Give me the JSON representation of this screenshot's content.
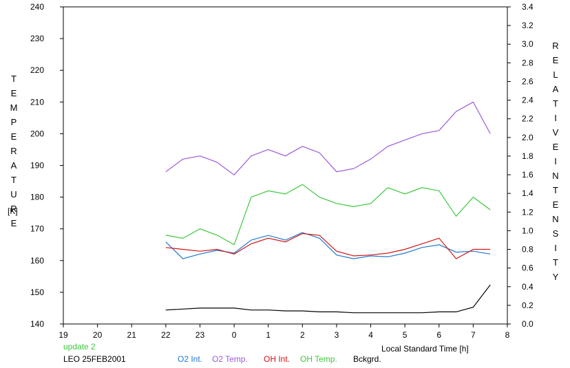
{
  "chart_data": {
    "type": "line",
    "xlabel": "Local Standard Time [h]",
    "x_ticks": [
      "19",
      "20",
      "21",
      "22",
      "23",
      "0",
      "1",
      "2",
      "3",
      "4",
      "5",
      "6",
      "7",
      "8"
    ],
    "xlim": [
      19,
      32
    ],
    "y_left": {
      "label_letters": [
        "T",
        "E",
        "M",
        "P",
        "E",
        "R",
        "A",
        "T",
        "U",
        "R",
        "E"
      ],
      "unit": "[K]",
      "ylim": [
        140,
        240
      ],
      "ticks": [
        "140",
        "150",
        "160",
        "170",
        "180",
        "190",
        "200",
        "210",
        "220",
        "230",
        "240"
      ]
    },
    "y_right": {
      "label_word1": [
        "R",
        "E",
        "L",
        "A",
        "T",
        "I",
        "V",
        "E"
      ],
      "label_word2": [
        "I",
        "N",
        "T",
        "E",
        "N",
        "S",
        "I",
        "T",
        "Y"
      ],
      "ylim": [
        0.0,
        3.4
      ],
      "ticks": [
        "0.0",
        "0.2",
        "0.4",
        "0.6",
        "0.8",
        "1.0",
        "1.2",
        "1.4",
        "1.6",
        "1.8",
        "2.0",
        "2.2",
        "2.4",
        "2.6",
        "2.8",
        "3.0",
        "3.2",
        "3.4"
      ]
    },
    "annotation": "update 2",
    "station": "LEO 25FEB2001",
    "series": [
      {
        "name": "O2 Int.",
        "axis": "right",
        "color": "#1e78d2",
        "x": [
          22.0,
          22.5,
          23.0,
          23.5,
          24.0,
          24.5,
          25.0,
          25.5,
          26.0,
          26.5,
          27.0,
          27.5,
          28.0,
          28.5,
          29.0,
          29.5,
          30.0,
          30.5,
          31.0,
          31.5
        ],
        "y": [
          0.88,
          0.7,
          0.75,
          0.79,
          0.76,
          0.9,
          0.95,
          0.9,
          0.98,
          0.92,
          0.74,
          0.7,
          0.73,
          0.72,
          0.76,
          0.82,
          0.85,
          0.77,
          0.78,
          0.75
        ]
      },
      {
        "name": "O2 Temp.",
        "axis": "left",
        "color": "#9b59d6",
        "x": [
          22.0,
          22.5,
          23.0,
          23.5,
          24.0,
          24.5,
          25.0,
          25.5,
          26.0,
          26.5,
          27.0,
          27.5,
          28.0,
          28.5,
          29.0,
          29.5,
          30.0,
          30.5,
          31.0,
          31.5
        ],
        "y": [
          188,
          192,
          193,
          191,
          187,
          193,
          195,
          193,
          196,
          194,
          188,
          189,
          192,
          196,
          198,
          200,
          201,
          207,
          210,
          200
        ]
      },
      {
        "name": "OH Int.",
        "axis": "right",
        "color": "#d21414",
        "x": [
          22.0,
          22.5,
          23.0,
          23.5,
          24.0,
          24.5,
          25.0,
          25.5,
          26.0,
          26.5,
          27.0,
          27.5,
          28.0,
          28.5,
          29.0,
          29.5,
          30.0,
          30.5,
          31.0,
          31.5
        ],
        "y": [
          0.82,
          0.8,
          0.78,
          0.8,
          0.75,
          0.86,
          0.92,
          0.88,
          0.97,
          0.95,
          0.78,
          0.73,
          0.74,
          0.76,
          0.8,
          0.86,
          0.92,
          0.7,
          0.8,
          0.8
        ]
      },
      {
        "name": "OH Temp.",
        "axis": "left",
        "color": "#3cc83c",
        "x": [
          22.0,
          22.5,
          23.0,
          23.5,
          24.0,
          24.5,
          25.0,
          25.5,
          26.0,
          26.5,
          27.0,
          27.5,
          28.0,
          28.5,
          29.0,
          29.5,
          30.0,
          30.5,
          31.0,
          31.5
        ],
        "y": [
          168,
          167,
          170,
          168,
          165,
          180,
          182,
          181,
          184,
          180,
          178,
          177,
          178,
          183,
          181,
          183,
          182,
          174,
          180,
          176
        ]
      },
      {
        "name": "Bckgrd.",
        "axis": "right",
        "color": "#000000",
        "x": [
          22.0,
          22.5,
          23.0,
          23.5,
          24.0,
          24.5,
          25.0,
          25.5,
          26.0,
          26.5,
          27.0,
          27.5,
          28.0,
          28.5,
          29.0,
          29.5,
          30.0,
          30.5,
          31.0,
          31.5
        ],
        "y": [
          0.15,
          0.16,
          0.17,
          0.17,
          0.17,
          0.15,
          0.15,
          0.14,
          0.14,
          0.13,
          0.13,
          0.12,
          0.12,
          0.12,
          0.12,
          0.12,
          0.13,
          0.13,
          0.18,
          0.42
        ]
      }
    ]
  }
}
